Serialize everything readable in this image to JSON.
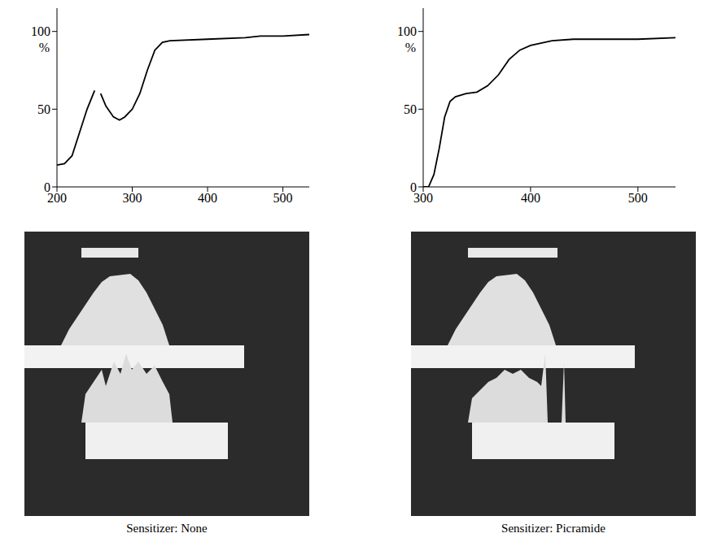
{
  "chart_data": [
    {
      "type": "line",
      "title": "Sensitizer: None",
      "ylabel": "%",
      "x": [
        200,
        210,
        220,
        230,
        240,
        250,
        254,
        258,
        265,
        275,
        283,
        290,
        300,
        310,
        320,
        330,
        340,
        350,
        400,
        450,
        470,
        500,
        535
      ],
      "values": [
        14,
        15,
        20,
        35,
        50,
        62,
        null,
        60,
        52,
        45,
        43,
        45,
        50,
        60,
        75,
        88,
        93,
        94,
        95,
        96,
        97,
        97,
        98
      ],
      "color": "#000000",
      "xlim": [
        200,
        535
      ],
      "xticks": [
        200,
        300,
        400,
        500
      ],
      "ylim": [
        0,
        115
      ],
      "yticks": [
        0,
        50,
        100
      ]
    },
    {
      "type": "line",
      "title": "Sensitizer: Picramide",
      "ylabel": "%",
      "x": [
        300,
        305,
        310,
        315,
        320,
        325,
        330,
        340,
        350,
        360,
        370,
        380,
        390,
        400,
        420,
        440,
        500,
        535
      ],
      "values": [
        0,
        0,
        8,
        25,
        45,
        55,
        58,
        60,
        61,
        65,
        72,
        82,
        88,
        91,
        94,
        95,
        95,
        96
      ],
      "color": "#000000",
      "xlim": [
        300,
        535
      ],
      "xticks": [
        300,
        400,
        500
      ],
      "ylim": [
        0,
        115
      ],
      "yticks": [
        0,
        50,
        100
      ]
    }
  ]
}
